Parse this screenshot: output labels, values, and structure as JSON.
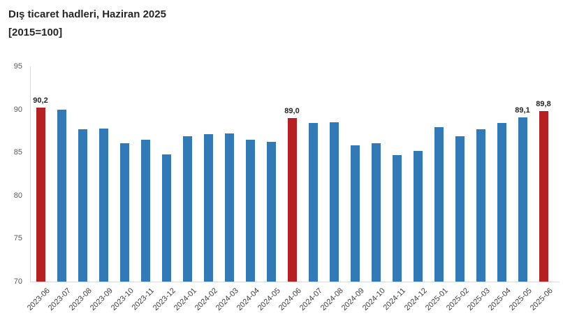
{
  "title": {
    "line1": "Dış ticaret hadleri, Haziran 2025",
    "line2": "[2015=100]"
  },
  "chart_data": {
    "type": "bar",
    "title": "Dış ticaret hadleri, Haziran 2025",
    "subtitle": "[2015=100]",
    "categories": [
      "2023-06",
      "2023-07",
      "2023-08",
      "2023-09",
      "2023-10",
      "2023-11",
      "2023-12",
      "2024-01",
      "2024-02",
      "2024-03",
      "2024-04",
      "2024-05",
      "2024-06",
      "2024-07",
      "2024-08",
      "2024-09",
      "2024-10",
      "2024-11",
      "2024-12",
      "2025-01",
      "2025-02",
      "2025-03",
      "2025-04",
      "2025-05",
      "2025-06"
    ],
    "values": [
      90.2,
      90.0,
      87.7,
      87.8,
      86.1,
      86.5,
      84.8,
      86.9,
      87.1,
      87.2,
      86.5,
      86.2,
      89.0,
      88.4,
      88.5,
      85.8,
      86.1,
      84.7,
      85.2,
      87.9,
      86.9,
      87.7,
      88.4,
      89.1,
      89.8
    ],
    "highlight_indices": [
      0,
      12,
      24
    ],
    "data_labels": {
      "0": "90,2",
      "12": "89,0",
      "23": "89,1",
      "24": "89,8"
    },
    "ylim": [
      70,
      95
    ],
    "yticks": [
      70,
      75,
      80,
      85,
      90,
      95
    ],
    "xlabel": "",
    "ylabel": "",
    "grid": false,
    "legend": false,
    "colors": {
      "bar": "#3379B6",
      "highlight": "#B52025",
      "axis_line": "#D9D9D9",
      "ytick_text": "#595959",
      "xtick_text": "#404040",
      "data_label_text": "#262626"
    }
  }
}
